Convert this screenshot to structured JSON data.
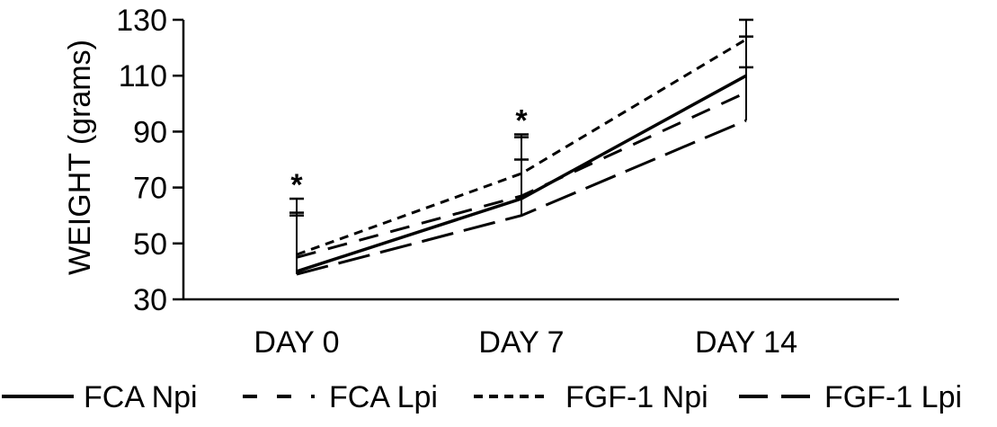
{
  "chart_data": {
    "type": "line",
    "title": "",
    "xlabel": "",
    "ylabel": "WEIGHT (grams)",
    "ylim": [
      30,
      130
    ],
    "yticks": [
      30,
      50,
      70,
      90,
      110,
      130
    ],
    "categories": [
      "DAY 0",
      "DAY 7",
      "DAY 14"
    ],
    "grid": false,
    "legend_position": "bottom",
    "series": [
      {
        "name": "FCA Npi",
        "values": [
          40,
          66,
          110
        ],
        "error_high": [
          null,
          null,
          113
        ],
        "dash": "solid",
        "color": "#000000"
      },
      {
        "name": "FCA Lpi",
        "values": [
          45,
          67,
          104
        ],
        "error_high": [
          60,
          80,
          null
        ],
        "dash": "dashed",
        "color": "#000000"
      },
      {
        "name": "FGF-1 Npi",
        "values": [
          46,
          75,
          123
        ],
        "error_high": [
          66,
          89,
          130
        ],
        "dash": "short-dashed",
        "color": "#000000"
      },
      {
        "name": "FGF-1 Lpi",
        "values": [
          39,
          60,
          94
        ],
        "error_high": [
          61,
          88,
          124
        ],
        "dash": "long-dashed",
        "color": "#000000"
      }
    ],
    "annotations": [
      {
        "text": "*",
        "category": "DAY 0"
      },
      {
        "text": "*",
        "category": "DAY 7"
      }
    ]
  }
}
